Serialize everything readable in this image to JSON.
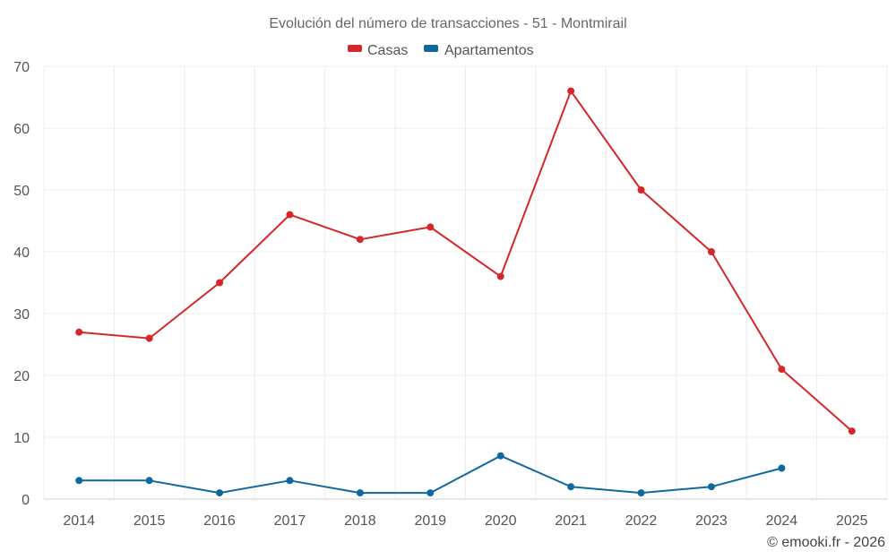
{
  "chart_data": {
    "type": "line",
    "title": "Evolución del número de transacciones - 51 - Montmirail",
    "x": [
      "2014",
      "2015",
      "2016",
      "2017",
      "2018",
      "2019",
      "2020",
      "2021",
      "2022",
      "2023",
      "2024",
      "2025"
    ],
    "ylim": [
      0,
      70
    ],
    "yticks": [
      0,
      10,
      20,
      30,
      40,
      50,
      60,
      70
    ],
    "grid": true,
    "legend_position": "top-center",
    "series": [
      {
        "name": "Casas",
        "color": "#d62728",
        "values": [
          27,
          26,
          35,
          46,
          42,
          44,
          36,
          66,
          50,
          40,
          21,
          11
        ]
      },
      {
        "name": "Apartamentos",
        "color": "#0e6a9e",
        "values": [
          3,
          3,
          1,
          3,
          1,
          1,
          7,
          2,
          1,
          2,
          5,
          null
        ]
      }
    ]
  },
  "credit": "© emooki.fr - 2026"
}
